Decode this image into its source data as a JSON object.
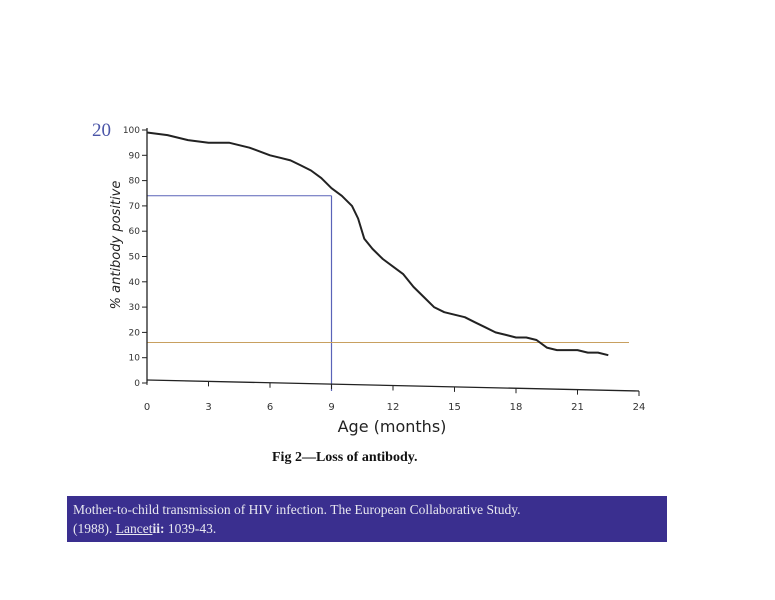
{
  "slide_number": "20",
  "caption": "Fig 2—Loss of antibody.",
  "citation": {
    "line1": "Mother-to-child transmission of HIV infection. The European Collaborative Study.",
    "line2_prefix": "(1988). ",
    "journal": "Lancet",
    "volume": "ii:",
    "pages": " 1039-43."
  },
  "chart_data": {
    "type": "line",
    "xlabel": "Age (months)",
    "ylabel": "% antibody positive",
    "x_ticks": [
      "0",
      "3",
      "6",
      "9",
      "12",
      "15",
      "18",
      "21",
      "24"
    ],
    "y_ticks": [
      "0",
      "10",
      "20",
      "30",
      "40",
      "50",
      "60",
      "70",
      "80",
      "90",
      "100"
    ],
    "xlim": [
      0,
      24
    ],
    "ylim": [
      0,
      100
    ],
    "grid": false,
    "series": [
      {
        "x": [
          0,
          1,
          2,
          3,
          4,
          5,
          6,
          6.5,
          7,
          7.5,
          8,
          8.5,
          9,
          9.5,
          10,
          10.3,
          10.6,
          11,
          11.5,
          12,
          12.5,
          13,
          13.5,
          14,
          14.5,
          15,
          15.5,
          16,
          16.5,
          17,
          17.5,
          18,
          18.5,
          19,
          19.5,
          20,
          20.5,
          21,
          21.5,
          22,
          22.5
        ],
        "y": [
          99,
          98,
          96,
          95,
          95,
          93,
          90,
          89,
          88,
          86,
          84,
          81,
          77,
          74,
          70,
          65,
          57,
          53,
          49,
          46,
          43,
          38,
          34,
          30,
          28,
          27,
          26,
          24,
          22,
          20,
          19,
          18,
          18,
          17,
          14,
          13,
          13,
          13,
          12,
          12,
          11
        ]
      }
    ],
    "reference_lines": [
      {
        "axis": "y",
        "value": 74,
        "color": "#5a63b8"
      },
      {
        "axis": "x",
        "value": 9,
        "color": "#5a63b8"
      },
      {
        "axis": "y",
        "value": 16,
        "color": "#c8a060"
      }
    ],
    "colors": {
      "curve": "#222222",
      "axis": "#222222"
    }
  }
}
